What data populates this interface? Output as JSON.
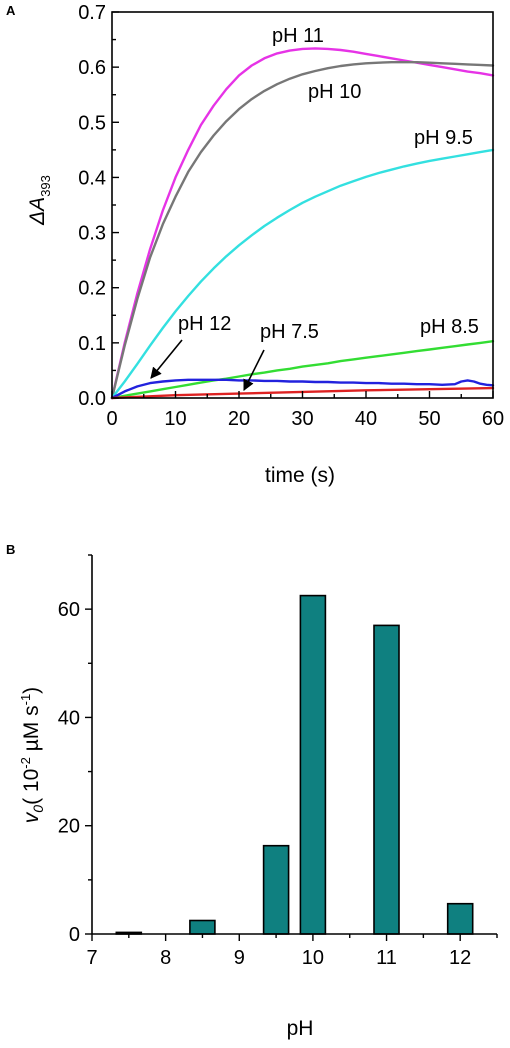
{
  "chart_data": [
    {
      "panel": "A",
      "type": "line",
      "xlabel": "time (s)",
      "ylabel_main": "ΔA",
      "ylabel_sub": "393",
      "xlim": [
        0,
        60
      ],
      "ylim": [
        0,
        0.7
      ],
      "xticks": [
        0,
        10,
        20,
        30,
        40,
        50,
        60
      ],
      "yticks": [
        "0.0",
        "0.1",
        "0.2",
        "0.3",
        "0.4",
        "0.5",
        "0.6",
        "0.7"
      ],
      "series": [
        {
          "name": "pH 11",
          "color": "#e633e6",
          "x": [
            0,
            2,
            4,
            6,
            8,
            10,
            12,
            14,
            16,
            18,
            20,
            22,
            24,
            26,
            28,
            30,
            32,
            34,
            36,
            38,
            40,
            42,
            44,
            46,
            48,
            50,
            52,
            54,
            56,
            58,
            60
          ],
          "y": [
            0,
            0.1,
            0.19,
            0.27,
            0.34,
            0.4,
            0.45,
            0.495,
            0.53,
            0.56,
            0.585,
            0.603,
            0.616,
            0.625,
            0.63,
            0.633,
            0.634,
            0.633,
            0.631,
            0.628,
            0.624,
            0.62,
            0.616,
            0.612,
            0.608,
            0.604,
            0.6,
            0.596,
            0.592,
            0.589,
            0.585
          ]
        },
        {
          "name": "pH 10",
          "color": "#777777",
          "x": [
            0,
            2,
            4,
            6,
            8,
            10,
            12,
            14,
            16,
            18,
            20,
            22,
            24,
            26,
            28,
            30,
            32,
            34,
            36,
            38,
            40,
            42,
            44,
            46,
            48,
            50,
            52,
            54,
            56,
            58,
            60
          ],
          "y": [
            0,
            0.095,
            0.18,
            0.255,
            0.315,
            0.365,
            0.41,
            0.446,
            0.476,
            0.502,
            0.524,
            0.542,
            0.557,
            0.569,
            0.579,
            0.587,
            0.593,
            0.598,
            0.602,
            0.605,
            0.607,
            0.608,
            0.609,
            0.609,
            0.609,
            0.608,
            0.607,
            0.606,
            0.605,
            0.604,
            0.603
          ]
        },
        {
          "name": "pH 9.5",
          "color": "#33e0e0",
          "x": [
            0,
            2,
            4,
            6,
            8,
            10,
            12,
            14,
            16,
            18,
            20,
            22,
            24,
            26,
            28,
            30,
            32,
            34,
            36,
            38,
            40,
            42,
            44,
            46,
            48,
            50,
            52,
            54,
            56,
            58,
            60
          ],
          "y": [
            0,
            0.03,
            0.062,
            0.095,
            0.127,
            0.157,
            0.185,
            0.211,
            0.235,
            0.257,
            0.277,
            0.295,
            0.312,
            0.327,
            0.341,
            0.354,
            0.365,
            0.375,
            0.385,
            0.393,
            0.401,
            0.408,
            0.414,
            0.42,
            0.425,
            0.43,
            0.434,
            0.438,
            0.442,
            0.446,
            0.45
          ]
        },
        {
          "name": "pH 8.5",
          "color": "#33dd33",
          "x": [
            0,
            2,
            4,
            6,
            8,
            10,
            12,
            14,
            16,
            18,
            20,
            22,
            24,
            26,
            28,
            30,
            32,
            34,
            36,
            38,
            40,
            42,
            44,
            46,
            48,
            50,
            52,
            54,
            56,
            58,
            60
          ],
          "y": [
            0,
            0.004,
            0.008,
            0.012,
            0.016,
            0.02,
            0.024,
            0.028,
            0.032,
            0.035,
            0.039,
            0.043,
            0.046,
            0.05,
            0.053,
            0.057,
            0.06,
            0.063,
            0.067,
            0.07,
            0.073,
            0.076,
            0.079,
            0.082,
            0.085,
            0.088,
            0.091,
            0.094,
            0.097,
            0.1,
            0.103
          ]
        },
        {
          "name": "pH 12",
          "color": "#2222dd",
          "x": [
            0,
            2,
            4,
            6,
            8,
            10,
            12,
            14,
            16,
            18,
            20,
            22,
            24,
            26,
            28,
            30,
            32,
            34,
            36,
            38,
            40,
            42,
            44,
            46,
            48,
            50,
            52,
            54,
            55,
            56,
            57,
            58,
            59,
            60
          ],
          "y": [
            0,
            0.012,
            0.021,
            0.027,
            0.03,
            0.032,
            0.033,
            0.033,
            0.033,
            0.033,
            0.032,
            0.032,
            0.031,
            0.031,
            0.03,
            0.03,
            0.029,
            0.029,
            0.028,
            0.028,
            0.027,
            0.027,
            0.026,
            0.026,
            0.025,
            0.025,
            0.024,
            0.025,
            0.03,
            0.032,
            0.03,
            0.026,
            0.024,
            0.023
          ]
        },
        {
          "name": "pH 7.5",
          "color": "#dd2222",
          "x": [
            0,
            10,
            20,
            30,
            40,
            50,
            60
          ],
          "y": [
            0,
            0.005,
            0.008,
            0.011,
            0.014,
            0.016,
            0.018
          ]
        }
      ],
      "annotations": [
        {
          "text": "pH 11"
        },
        {
          "text": "pH 10"
        },
        {
          "text": "pH 9.5"
        },
        {
          "text": "pH 12"
        },
        {
          "text": "pH 7.5"
        },
        {
          "text": "pH 8.5"
        }
      ]
    },
    {
      "panel": "B",
      "type": "bar",
      "xlabel": "pH",
      "ylabel": "v0 ( 10-2 µM s-1)",
      "ylabel_main": "v",
      "ylabel_sub": "0",
      "ylabel_pre": "( 10",
      "ylabel_sup1": "-2",
      "ylabel_mid": " µM s",
      "ylabel_sup2": "-1",
      "ylabel_post": ")",
      "xlim": [
        7,
        12.5
      ],
      "ylim": [
        0,
        70
      ],
      "xticks": [
        7,
        8,
        9,
        10,
        11,
        12
      ],
      "yticks": [
        0,
        20,
        40,
        60
      ],
      "bar_color": "#0f8080",
      "x": [
        7.5,
        8.5,
        9.5,
        10,
        11,
        12
      ],
      "values": [
        0.3,
        2.5,
        16.3,
        62.5,
        57,
        5.6
      ]
    }
  ]
}
